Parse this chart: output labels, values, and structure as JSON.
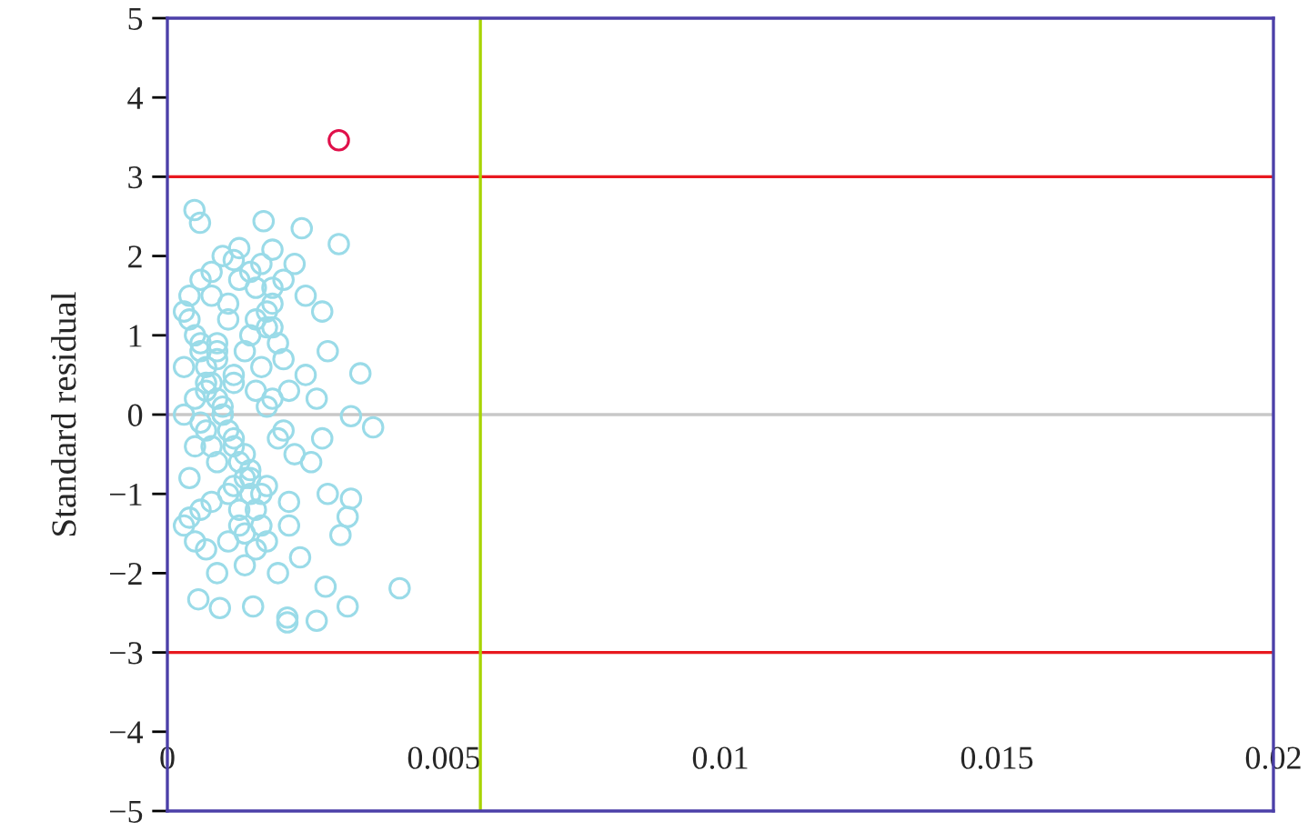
{
  "chart_data": {
    "type": "scatter",
    "ylabel": "Standard residual",
    "xlim": [
      0,
      0.02
    ],
    "ylim": [
      -5,
      5
    ],
    "xticks": [
      0,
      0.005,
      0.01,
      0.015,
      0.02
    ],
    "yticks": [
      {
        "value": -5,
        "label": "−5"
      },
      {
        "value": -4,
        "label": "−4"
      },
      {
        "value": -3,
        "label": "−3"
      },
      {
        "value": -2,
        "label": "−2"
      },
      {
        "value": -1,
        "label": "−1"
      },
      0,
      1,
      2,
      3,
      4,
      5
    ],
    "marker": "circle",
    "grid": false,
    "legend": false,
    "ref_lines": [
      {
        "axis": "y",
        "value": 3,
        "color": "#e8191f"
      },
      {
        "axis": "y",
        "value": -3,
        "color": "#e8191f"
      },
      {
        "axis": "y",
        "value": 0,
        "color": "#c8c8c8"
      },
      {
        "axis": "x",
        "value": 0.00566,
        "color": "#a8d400"
      }
    ],
    "series": [
      {
        "color": "#9adbe8",
        "x": [
          0.00049,
          0.00059,
          0.00174,
          0.00243,
          0.0031,
          0.0013,
          0.0019,
          0.0042,
          0.00286,
          0.00326,
          0.00217,
          0.0027,
          0.00217,
          0.00056,
          0.00095,
          0.00155,
          0.00349,
          0.00372,
          0.00332,
          0.00313,
          0.00332,
          0.00326,
          0.0028,
          0.0029,
          0.0027,
          0.0025,
          0.0026,
          0.0028,
          0.0029,
          0.0024,
          0.0023,
          0.0022,
          0.0025,
          0.0021,
          0.002,
          0.0019,
          0.0018,
          0.0017,
          0.0016,
          0.0015,
          0.0014,
          0.0013,
          0.0012,
          0.0011,
          0.001,
          0.0009,
          0.0008,
          0.0007,
          0.0006,
          0.0005,
          0.0004,
          0.0003,
          0.0003,
          0.0004,
          0.0005,
          0.0006,
          0.0007,
          0.0008,
          0.0009,
          0.001,
          0.0011,
          0.0012,
          0.0013,
          0.0014,
          0.0015,
          0.0016,
          0.0017,
          0.0018,
          0.0019,
          0.002,
          0.0021,
          0.0022,
          0.0023,
          0.0003,
          0.0005,
          0.0007,
          0.0009,
          0.0011,
          0.0013,
          0.0015,
          0.0017,
          0.0019,
          0.0021,
          0.0004,
          0.0006,
          0.0008,
          0.001,
          0.0012,
          0.0014,
          0.0016,
          0.0018,
          0.002,
          0.0022,
          0.0003,
          0.0005,
          0.0007,
          0.0009,
          0.0011,
          0.0013,
          0.0015,
          0.0017,
          0.0019,
          0.0004,
          0.0006,
          0.0008,
          0.001,
          0.0012,
          0.0014,
          0.0016,
          0.0018,
          0.0006,
          0.0009,
          0.0012,
          0.0015,
          0.0018,
          0.0008,
          0.0011,
          0.0014,
          0.0007,
          0.0012,
          0.0016,
          0.0009
        ],
        "values": [
          2.58,
          2.42,
          2.44,
          2.35,
          2.15,
          2.1,
          2.08,
          -2.19,
          -2.17,
          -2.42,
          -2.56,
          -2.6,
          -2.62,
          -2.33,
          -2.44,
          -2.42,
          0.52,
          -0.16,
          -0.02,
          -1.52,
          -1.06,
          -1.29,
          1.3,
          0.8,
          0.2,
          1.5,
          -0.6,
          -0.3,
          -1.0,
          -1.8,
          1.9,
          -1.4,
          0.5,
          1.7,
          -2.0,
          1.6,
          -1.6,
          1.9,
          -1.7,
          1.8,
          -1.9,
          1.7,
          1.95,
          -1.6,
          2.0,
          -2.0,
          1.8,
          -1.7,
          1.7,
          -1.6,
          1.5,
          1.3,
          -1.4,
          1.2,
          1.0,
          0.8,
          0.6,
          0.4,
          0.2,
          0.0,
          -0.2,
          -0.4,
          -0.6,
          -0.8,
          -1.0,
          -1.2,
          -1.4,
          1.3,
          1.1,
          0.9,
          0.7,
          0.3,
          -0.5,
          0.6,
          0.2,
          -0.2,
          -0.6,
          -1.0,
          -1.4,
          1.0,
          0.6,
          0.2,
          -0.2,
          -0.8,
          -1.2,
          -0.4,
          0.0,
          0.4,
          0.8,
          1.2,
          -0.9,
          -0.3,
          -1.1,
          0.0,
          -0.4,
          0.4,
          0.8,
          1.2,
          -1.2,
          -0.8,
          -1.0,
          1.4,
          -1.3,
          0.9,
          1.5,
          0.1,
          -0.9,
          -0.5,
          0.3,
          1.1,
          -0.1,
          0.7,
          0.5,
          -0.7,
          0.1,
          -1.1,
          1.4,
          -1.5,
          0.3,
          -0.3,
          1.6,
          0.9
        ]
      },
      {
        "color": "#e0104a",
        "x": [
          0.0031
        ],
        "values": [
          3.46
        ]
      }
    ]
  }
}
